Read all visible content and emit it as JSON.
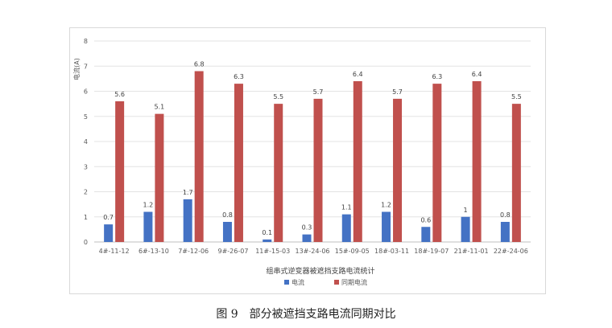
{
  "caption": "图 9　部分被遮挡支路电流同期对比",
  "chart_data": {
    "type": "bar",
    "title": "",
    "xlabel": "组串式逆变器被遮挡支路电流统计",
    "ylabel": "电流(A)",
    "ylim": [
      0,
      8
    ],
    "yticks": [
      0,
      1,
      2,
      3,
      4,
      5,
      6,
      7,
      8
    ],
    "grid": true,
    "legend_position": "bottom",
    "categories": [
      "4#-11-12",
      "6#-13-10",
      "7#-12-06",
      "9#-26-07",
      "11#-15-03",
      "13#-24-06",
      "15#-09-05",
      "18#-03-11",
      "18#-19-07",
      "21#-11-01",
      "22#-24-06"
    ],
    "series": [
      {
        "name": "电流",
        "color": "#4472c4",
        "values": [
          0.7,
          1.2,
          1.7,
          0.8,
          0.1,
          0.3,
          1.1,
          1.2,
          0.6,
          1,
          0.8
        ],
        "labels": [
          "0.7",
          "1.2",
          "1.7",
          "0.8",
          "0.1",
          "0.3",
          "1.1",
          "1.2",
          "0.6",
          "1",
          "0.8"
        ]
      },
      {
        "name": "同期电流",
        "color": "#c0504d",
        "values": [
          5.6,
          5.1,
          6.8,
          6.3,
          5.5,
          5.7,
          6.4,
          5.7,
          6.3,
          6.4,
          5.5
        ],
        "labels": [
          "5.6",
          "5.1",
          "6.8",
          "6.3",
          "5.5",
          "5.7",
          "6.4",
          "5.7",
          "6.3",
          "6.4",
          "5.5"
        ]
      }
    ]
  }
}
